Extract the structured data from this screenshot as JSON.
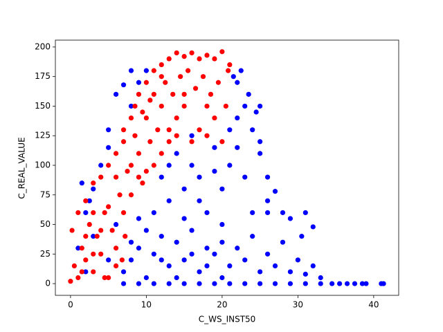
{
  "chart_data": {
    "type": "scatter",
    "xlabel": "C_WS_INST50",
    "ylabel": "C_REAL_VALUE",
    "xlim": [
      -2.0,
      43.3
    ],
    "ylim": [
      -9.9,
      205.8
    ],
    "xticks": [
      0,
      10,
      20,
      30,
      40
    ],
    "yticks": [
      0,
      25,
      50,
      75,
      100,
      125,
      150,
      175,
      200
    ],
    "series": [
      {
        "color": "#0000ff",
        "x": [
          7,
          9,
          11,
          13,
          15,
          17,
          19,
          21,
          23,
          25,
          27,
          29,
          31,
          33,
          34.5,
          35.5,
          36.5,
          37.5,
          38.5,
          39,
          41,
          41.3,
          7,
          8,
          9,
          10,
          11,
          12,
          13,
          14,
          15,
          16,
          17,
          18,
          19,
          20,
          21,
          22,
          23,
          24,
          25,
          26,
          27,
          28,
          29,
          30,
          31,
          32,
          33,
          30.5,
          29,
          28,
          31,
          32,
          27,
          26,
          25,
          24,
          23,
          22,
          22.5,
          23.5,
          24.5,
          25,
          26,
          21.5,
          22,
          21,
          21,
          20,
          19,
          18,
          17,
          16,
          15,
          14,
          13,
          12,
          11,
          10,
          9,
          8,
          12,
          14,
          16,
          18,
          20,
          24,
          23,
          22,
          25,
          26,
          20,
          15,
          13,
          16,
          19,
          17,
          9,
          8,
          6,
          5,
          4,
          3,
          2,
          1.5,
          2.5,
          5,
          7,
          8,
          10,
          3,
          5,
          2,
          1,
          6
        ],
        "values": [
          0,
          0,
          0,
          0,
          0,
          0,
          0,
          0,
          0,
          0,
          0,
          0,
          0,
          0,
          0,
          0,
          0,
          0,
          0,
          0,
          0,
          0,
          10,
          20,
          30,
          5,
          25,
          40,
          15,
          35,
          20,
          45,
          10,
          30,
          25,
          50,
          15,
          30,
          20,
          40,
          10,
          25,
          15,
          35,
          10,
          20,
          8,
          15,
          5,
          40,
          55,
          60,
          60,
          48,
          78,
          90,
          110,
          130,
          150,
          170,
          180,
          160,
          145,
          120,
          70,
          175,
          140,
          130,
          100,
          80,
          95,
          60,
          90,
          100,
          80,
          110,
          70,
          90,
          60,
          45,
          55,
          35,
          20,
          5,
          25,
          15,
          35,
          60,
          90,
          115,
          150,
          60,
          5,
          55,
          100,
          125,
          115,
          70,
          170,
          150,
          160,
          130,
          100,
          80,
          60,
          85,
          70,
          115,
          168,
          180,
          180,
          40,
          20,
          10,
          30,
          50
        ]
      },
      {
        "color": "#ff0000",
        "x": [
          0,
          0.2,
          0.5,
          1,
          1,
          1.5,
          2,
          2,
          2.5,
          3,
          3,
          3.5,
          4,
          4,
          4.5,
          5,
          5,
          5.5,
          6,
          6,
          6.5,
          7,
          7,
          7.5,
          8,
          8,
          8.5,
          9,
          9,
          9.5,
          10,
          10,
          10.5,
          11,
          11,
          11.5,
          12,
          12,
          12.5,
          13,
          13,
          13.5,
          14,
          14,
          14.5,
          15,
          15,
          15.5,
          16,
          16,
          16.5,
          17,
          17,
          17.5,
          18,
          18,
          18.5,
          19,
          19,
          19.5,
          20,
          20,
          20.5,
          20.8,
          13,
          11,
          9,
          8,
          7,
          6,
          5,
          4,
          3,
          2,
          1.5,
          6,
          4.5,
          3,
          8.5,
          9.5,
          10.5,
          12,
          15,
          18,
          21,
          14,
          12,
          10,
          7.2,
          6.8
        ],
        "values": [
          2,
          45,
          15,
          60,
          5,
          30,
          70,
          20,
          50,
          85,
          10,
          40,
          90,
          25,
          60,
          100,
          5,
          45,
          110,
          30,
          75,
          130,
          120,
          95,
          140,
          100,
          150,
          160,
          110,
          85,
          170,
          140,
          120,
          180,
          160,
          130,
          185,
          150,
          170,
          190,
          130,
          160,
          195,
          140,
          175,
          192,
          150,
          180,
          195,
          120,
          165,
          190,
          130,
          175,
          193,
          125,
          160,
          190,
          140,
          170,
          196,
          120,
          150,
          180,
          120,
          100,
          90,
          75,
          60,
          90,
          65,
          45,
          25,
          40,
          10,
          15,
          5,
          60,
          125,
          145,
          155,
          175,
          160,
          150,
          185,
          125,
          110,
          95,
          40,
          20
        ]
      }
    ]
  }
}
